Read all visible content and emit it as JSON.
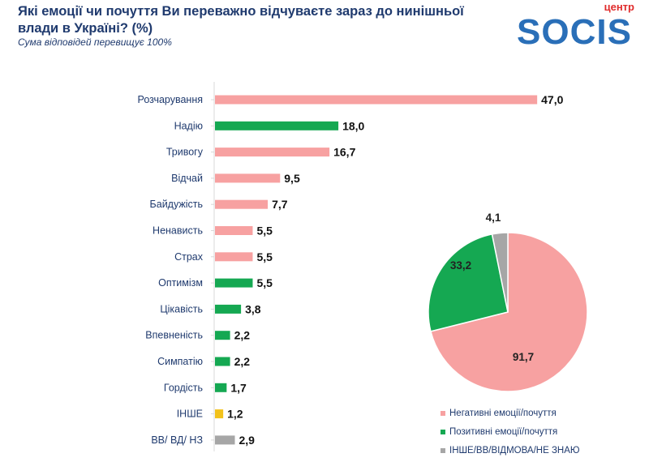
{
  "header": {
    "title": "Які емоції чи почуття Ви переважно відчуваєте зараз до нинішньої влади в Україні? (%)",
    "subtitle": "Сума відповідей перевищує 100%"
  },
  "logo": {
    "brand": "SOCIS",
    "tag": "центр"
  },
  "colors": {
    "negative": "#f7a1a1",
    "positive": "#15a852",
    "other": "#f2c21b",
    "dk": "#a6a6a6",
    "text": "#1f3a6e",
    "brand_blue": "#2a6fb8",
    "brand_red": "#e02b2b"
  },
  "chart_data": [
    {
      "type": "bar",
      "orientation": "horizontal",
      "categories": [
        "Розчарування",
        "Надію",
        "Тривогу",
        "Відчай",
        "Байдужість",
        "Ненависть",
        "Страх",
        "Оптимізм",
        "Цікавість",
        "Впевненість",
        "Симпатію",
        "Гордість",
        "ІНШЕ",
        "ВВ/ ВД/ НЗ"
      ],
      "values": [
        47.0,
        18.0,
        16.7,
        9.5,
        7.7,
        5.5,
        5.5,
        5.5,
        3.8,
        2.2,
        2.2,
        1.7,
        1.2,
        2.9
      ],
      "value_labels": [
        "47,0",
        "18,0",
        "16,7",
        "9,5",
        "7,7",
        "5,5",
        "5,5",
        "5,5",
        "3,8",
        "2,2",
        "2,2",
        "1,7",
        "1,2",
        "2,9"
      ],
      "group": [
        "negative",
        "positive",
        "negative",
        "negative",
        "negative",
        "negative",
        "negative",
        "positive",
        "positive",
        "positive",
        "positive",
        "positive",
        "other",
        "dk"
      ]
    },
    {
      "type": "pie",
      "labels": [
        "Негативні емоції/почуття",
        "Позитивні емоції/почуття",
        "ІНШЕ/ВВ/ВІДМОВА/НЕ ЗНАЮ"
      ],
      "values": [
        91.7,
        33.2,
        4.1
      ],
      "value_labels": [
        "91,7",
        "33,2",
        "4,1"
      ],
      "colors": [
        "#f7a1a1",
        "#15a852",
        "#a6a6a6"
      ],
      "legend_position": "bottom"
    }
  ]
}
